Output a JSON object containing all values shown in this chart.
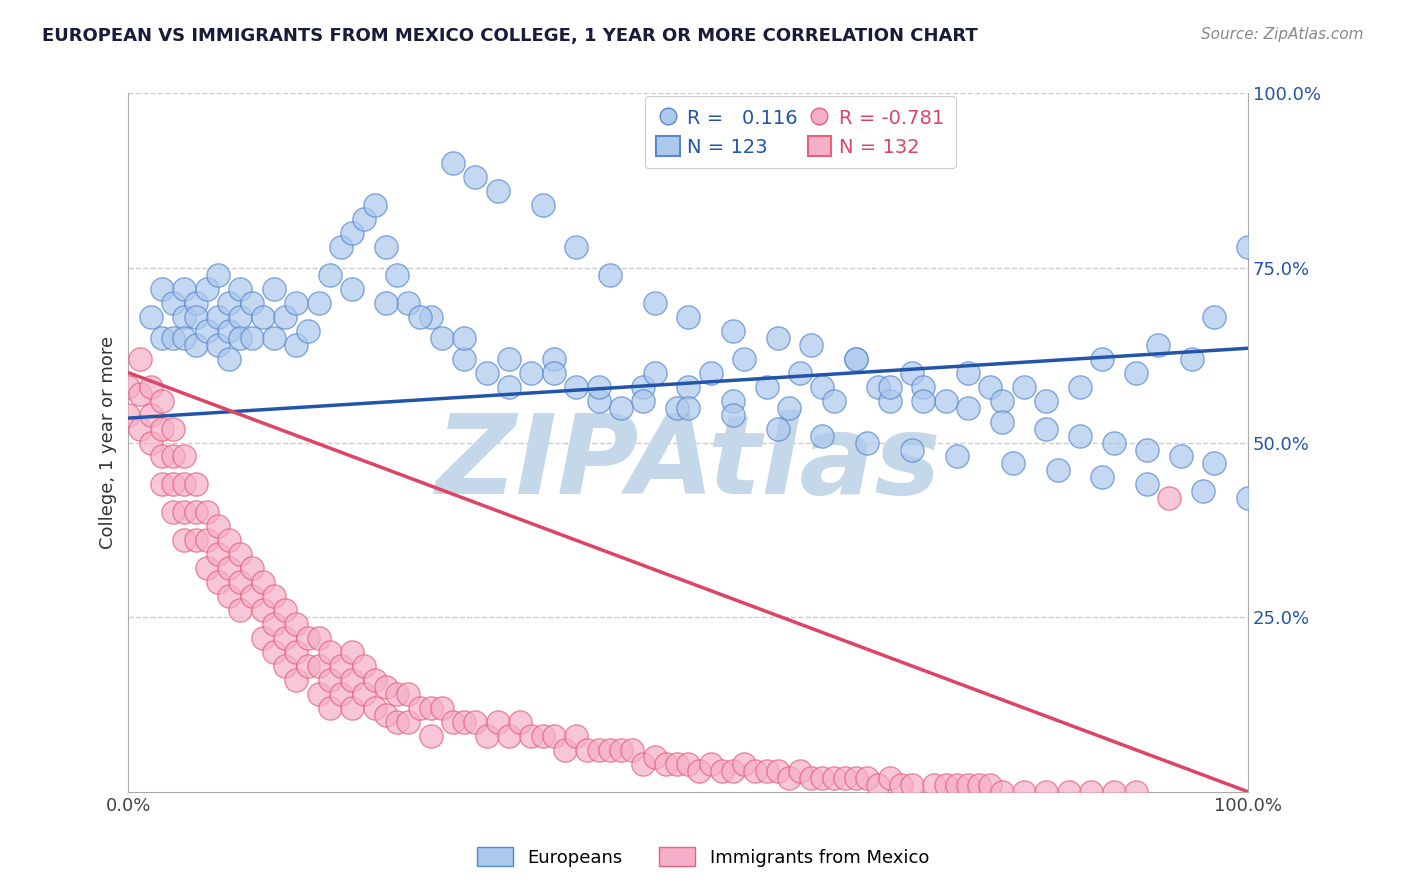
{
  "title": "EUROPEAN VS IMMIGRANTS FROM MEXICO COLLEGE, 1 YEAR OR MORE CORRELATION CHART",
  "source": "Source: ZipAtlas.com",
  "ylabel": "College, 1 year or more",
  "xlim": [
    0.0,
    1.0
  ],
  "ylim": [
    0.0,
    1.0
  ],
  "blue_R": 0.116,
  "blue_N": 123,
  "pink_R": -0.781,
  "pink_N": 132,
  "blue_color": "#adc8ed",
  "pink_color": "#f5afc8",
  "blue_edge_color": "#5588cc",
  "pink_edge_color": "#e8607a",
  "blue_line_color": "#2255aa",
  "pink_line_color": "#dd4466",
  "watermark": "ZIPAtlas",
  "watermark_color": "#c5d8ea",
  "legend_label_blue": "Europeans",
  "legend_label_pink": "Immigrants from Mexico",
  "blue_trend_x": [
    0.0,
    1.0
  ],
  "blue_trend_y": [
    0.535,
    0.635
  ],
  "pink_trend_x": [
    0.0,
    1.0
  ],
  "pink_trend_y": [
    0.6,
    0.0
  ],
  "grid_color": "#cccccc",
  "title_color": "#1a1a3a",
  "source_color": "#888888",
  "ytick_positions": [
    0.25,
    0.5,
    0.75,
    1.0
  ],
  "ytick_labels": [
    "25.0%",
    "50.0%",
    "75.0%",
    "100.0%"
  ],
  "blue_scatter_x": [
    0.02,
    0.03,
    0.03,
    0.04,
    0.04,
    0.05,
    0.05,
    0.05,
    0.06,
    0.06,
    0.06,
    0.07,
    0.07,
    0.08,
    0.08,
    0.08,
    0.09,
    0.09,
    0.09,
    0.1,
    0.1,
    0.1,
    0.11,
    0.11,
    0.12,
    0.13,
    0.13,
    0.14,
    0.15,
    0.15,
    0.16,
    0.17,
    0.18,
    0.19,
    0.2,
    0.21,
    0.22,
    0.23,
    0.24,
    0.25,
    0.27,
    0.28,
    0.3,
    0.32,
    0.34,
    0.36,
    0.38,
    0.4,
    0.42,
    0.44,
    0.46,
    0.47,
    0.49,
    0.5,
    0.52,
    0.54,
    0.55,
    0.57,
    0.59,
    0.6,
    0.62,
    0.63,
    0.65,
    0.67,
    0.68,
    0.7,
    0.71,
    0.73,
    0.75,
    0.77,
    0.78,
    0.8,
    0.82,
    0.85,
    0.87,
    0.9,
    0.92,
    0.95,
    0.97,
    1.0,
    0.29,
    0.31,
    0.33,
    0.37,
    0.4,
    0.43,
    0.47,
    0.5,
    0.54,
    0.58,
    0.61,
    0.65,
    0.68,
    0.71,
    0.75,
    0.78,
    0.82,
    0.85,
    0.88,
    0.91,
    0.94,
    0.97,
    0.2,
    0.23,
    0.26,
    0.3,
    0.34,
    0.38,
    0.42,
    0.46,
    0.5,
    0.54,
    0.58,
    0.62,
    0.66,
    0.7,
    0.74,
    0.79,
    0.83,
    0.87,
    0.91,
    0.96,
    1.0
  ],
  "blue_scatter_y": [
    0.68,
    0.72,
    0.65,
    0.7,
    0.65,
    0.68,
    0.72,
    0.65,
    0.7,
    0.68,
    0.64,
    0.72,
    0.66,
    0.74,
    0.68,
    0.64,
    0.7,
    0.66,
    0.62,
    0.68,
    0.65,
    0.72,
    0.7,
    0.65,
    0.68,
    0.72,
    0.65,
    0.68,
    0.7,
    0.64,
    0.66,
    0.7,
    0.74,
    0.78,
    0.8,
    0.82,
    0.84,
    0.78,
    0.74,
    0.7,
    0.68,
    0.65,
    0.62,
    0.6,
    0.58,
    0.6,
    0.62,
    0.58,
    0.56,
    0.55,
    0.58,
    0.6,
    0.55,
    0.58,
    0.6,
    0.56,
    0.62,
    0.58,
    0.55,
    0.6,
    0.58,
    0.56,
    0.62,
    0.58,
    0.56,
    0.6,
    0.58,
    0.56,
    0.6,
    0.58,
    0.56,
    0.58,
    0.56,
    0.58,
    0.62,
    0.6,
    0.64,
    0.62,
    0.68,
    0.78,
    0.9,
    0.88,
    0.86,
    0.84,
    0.78,
    0.74,
    0.7,
    0.68,
    0.66,
    0.65,
    0.64,
    0.62,
    0.58,
    0.56,
    0.55,
    0.53,
    0.52,
    0.51,
    0.5,
    0.49,
    0.48,
    0.47,
    0.72,
    0.7,
    0.68,
    0.65,
    0.62,
    0.6,
    0.58,
    0.56,
    0.55,
    0.54,
    0.52,
    0.51,
    0.5,
    0.49,
    0.48,
    0.47,
    0.46,
    0.45,
    0.44,
    0.43,
    0.42
  ],
  "pink_scatter_x": [
    0.0,
    0.0,
    0.01,
    0.01,
    0.01,
    0.02,
    0.02,
    0.02,
    0.03,
    0.03,
    0.03,
    0.03,
    0.04,
    0.04,
    0.04,
    0.04,
    0.05,
    0.05,
    0.05,
    0.05,
    0.06,
    0.06,
    0.06,
    0.07,
    0.07,
    0.07,
    0.08,
    0.08,
    0.08,
    0.09,
    0.09,
    0.09,
    0.1,
    0.1,
    0.1,
    0.11,
    0.11,
    0.12,
    0.12,
    0.12,
    0.13,
    0.13,
    0.13,
    0.14,
    0.14,
    0.14,
    0.15,
    0.15,
    0.15,
    0.16,
    0.16,
    0.17,
    0.17,
    0.17,
    0.18,
    0.18,
    0.18,
    0.19,
    0.19,
    0.2,
    0.2,
    0.2,
    0.21,
    0.21,
    0.22,
    0.22,
    0.23,
    0.23,
    0.24,
    0.24,
    0.25,
    0.25,
    0.26,
    0.27,
    0.27,
    0.28,
    0.29,
    0.3,
    0.31,
    0.32,
    0.33,
    0.34,
    0.35,
    0.36,
    0.37,
    0.38,
    0.39,
    0.4,
    0.41,
    0.42,
    0.43,
    0.44,
    0.45,
    0.46,
    0.47,
    0.48,
    0.49,
    0.5,
    0.51,
    0.52,
    0.53,
    0.54,
    0.55,
    0.56,
    0.57,
    0.58,
    0.59,
    0.6,
    0.61,
    0.62,
    0.63,
    0.64,
    0.65,
    0.66,
    0.67,
    0.68,
    0.69,
    0.7,
    0.72,
    0.73,
    0.74,
    0.75,
    0.76,
    0.77,
    0.78,
    0.8,
    0.82,
    0.84,
    0.86,
    0.88,
    0.9,
    0.93
  ],
  "pink_scatter_y": [
    0.58,
    0.54,
    0.62,
    0.57,
    0.52,
    0.58,
    0.54,
    0.5,
    0.56,
    0.52,
    0.48,
    0.44,
    0.52,
    0.48,
    0.44,
    0.4,
    0.48,
    0.44,
    0.4,
    0.36,
    0.44,
    0.4,
    0.36,
    0.4,
    0.36,
    0.32,
    0.38,
    0.34,
    0.3,
    0.36,
    0.32,
    0.28,
    0.34,
    0.3,
    0.26,
    0.32,
    0.28,
    0.3,
    0.26,
    0.22,
    0.28,
    0.24,
    0.2,
    0.26,
    0.22,
    0.18,
    0.24,
    0.2,
    0.16,
    0.22,
    0.18,
    0.22,
    0.18,
    0.14,
    0.2,
    0.16,
    0.12,
    0.18,
    0.14,
    0.2,
    0.16,
    0.12,
    0.18,
    0.14,
    0.16,
    0.12,
    0.15,
    0.11,
    0.14,
    0.1,
    0.14,
    0.1,
    0.12,
    0.12,
    0.08,
    0.12,
    0.1,
    0.1,
    0.1,
    0.08,
    0.1,
    0.08,
    0.1,
    0.08,
    0.08,
    0.08,
    0.06,
    0.08,
    0.06,
    0.06,
    0.06,
    0.06,
    0.06,
    0.04,
    0.05,
    0.04,
    0.04,
    0.04,
    0.03,
    0.04,
    0.03,
    0.03,
    0.04,
    0.03,
    0.03,
    0.03,
    0.02,
    0.03,
    0.02,
    0.02,
    0.02,
    0.02,
    0.02,
    0.02,
    0.01,
    0.02,
    0.01,
    0.01,
    0.01,
    0.01,
    0.01,
    0.01,
    0.01,
    0.01,
    0.0,
    0.0,
    0.0,
    0.0,
    0.0,
    0.0,
    0.0,
    0.42
  ]
}
